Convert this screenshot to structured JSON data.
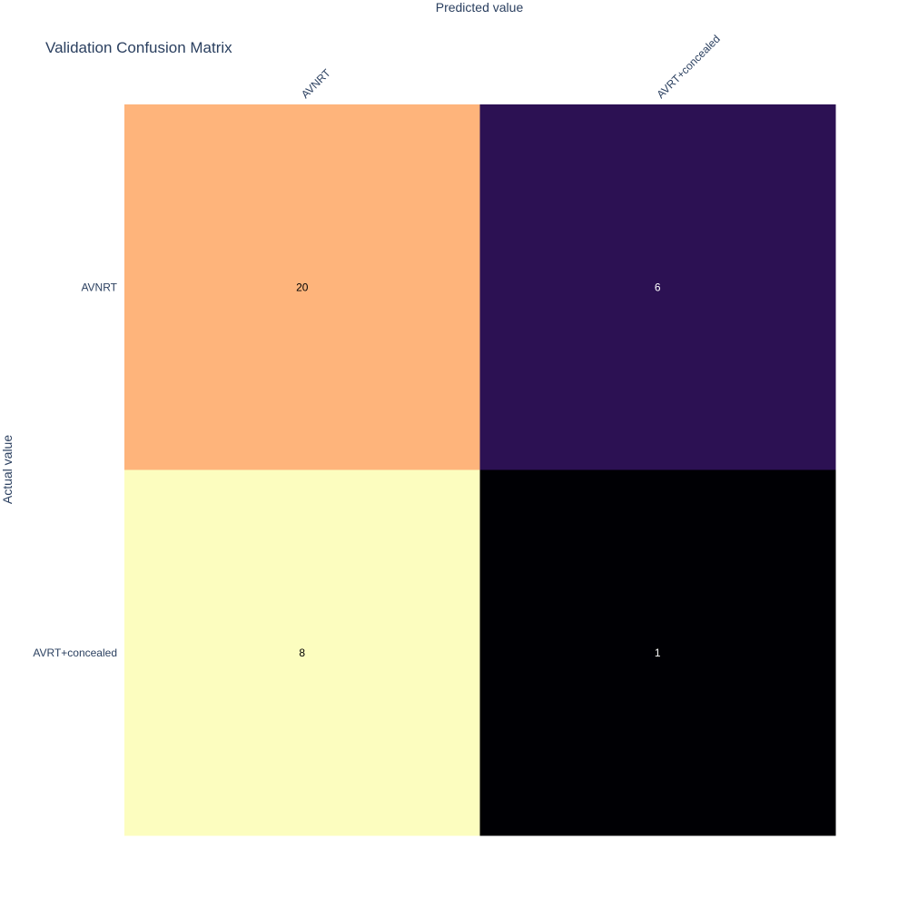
{
  "chart_data": {
    "type": "heatmap",
    "title": "Validation Confusion Matrix",
    "xlabel": "Predicted value",
    "ylabel": "Actual value",
    "x_categories": [
      "AVNRT",
      "AVRT+concealed"
    ],
    "y_categories": [
      "AVNRT",
      "AVRT+concealed"
    ],
    "values": [
      [
        20,
        6
      ],
      [
        8,
        1
      ]
    ],
    "colorscale": "magma",
    "colorbar": false,
    "cell_colors": [
      [
        "#feb47b",
        "#2c1153"
      ],
      [
        "#fcfdbf",
        "#000004"
      ]
    ],
    "text_colors": [
      [
        "#000000",
        "#ffffff"
      ],
      [
        "#000000",
        "#ffffff"
      ]
    ],
    "x_axis_side": "top",
    "x_tick_angle": -45
  }
}
